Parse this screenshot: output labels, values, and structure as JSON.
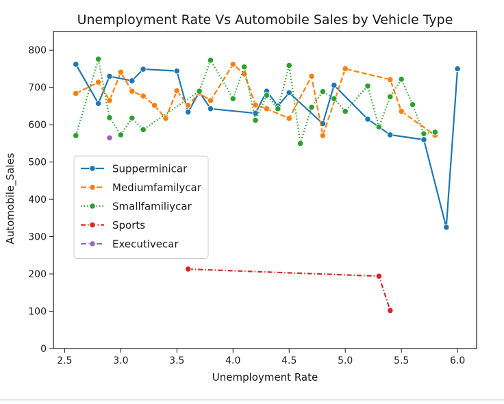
{
  "chart_data": {
    "type": "line",
    "title": "Unemployment Rate Vs Automobile Sales by Vehicle Type",
    "xlabel": "Unemployment Rate",
    "ylabel": "Automobile_Sales",
    "xlim": [
      2.4,
      6.17
    ],
    "ylim": [
      0,
      850
    ],
    "xticks": [
      2.5,
      3.0,
      3.5,
      4.0,
      4.5,
      5.0,
      5.5,
      6.0
    ],
    "xtick_labels": [
      "2.5",
      "3.0",
      "3.5",
      "4.0",
      "4.5",
      "5.0",
      "5.5",
      "6.0"
    ],
    "yticks": [
      0,
      100,
      200,
      300,
      400,
      500,
      600,
      700,
      800
    ],
    "ytick_labels": [
      "0",
      "100",
      "200",
      "300",
      "400",
      "500",
      "600",
      "700",
      "800"
    ],
    "grid": false,
    "legend_position": "center-left",
    "series": [
      {
        "name": "Supperminicar",
        "color": "#1f77b4",
        "line_style": "solid",
        "x": [
          2.6,
          2.8,
          2.9,
          3.1,
          3.2,
          3.5,
          3.6,
          3.7,
          3.8,
          4.2,
          4.3,
          4.4,
          4.5,
          4.8,
          4.9,
          5.2,
          5.4,
          5.7,
          5.9,
          6.0
        ],
        "y": [
          762,
          657,
          730,
          718,
          749,
          744,
          634,
          688,
          643,
          631,
          690,
          650,
          686,
          603,
          706,
          615,
          573,
          560,
          325,
          750
        ]
      },
      {
        "name": "Mediumfamilycar",
        "color": "#ff7f0e",
        "line_style": "dashed",
        "x": [
          2.6,
          2.8,
          2.9,
          3.0,
          3.1,
          3.2,
          3.3,
          3.4,
          3.5,
          3.6,
          3.7,
          3.8,
          4.0,
          4.1,
          4.2,
          4.3,
          4.5,
          4.7,
          4.8,
          5.0,
          5.4,
          5.5,
          5.8
        ],
        "y": [
          684,
          714,
          665,
          741,
          690,
          677,
          652,
          617,
          691,
          652,
          685,
          665,
          762,
          736,
          653,
          643,
          617,
          730,
          571,
          750,
          721,
          636,
          572
        ]
      },
      {
        "name": "Smallfamiliycar",
        "color": "#2ca02c",
        "line_style": "dotted",
        "x": [
          2.6,
          2.8,
          2.9,
          3.0,
          3.1,
          3.2,
          3.7,
          3.8,
          4.0,
          4.1,
          4.2,
          4.3,
          4.4,
          4.5,
          4.6,
          4.7,
          4.8,
          4.9,
          5.0,
          5.2,
          5.3,
          5.4,
          5.5,
          5.6,
          5.7,
          5.8
        ],
        "y": [
          571,
          776,
          619,
          573,
          618,
          587,
          690,
          773,
          670,
          755,
          612,
          679,
          643,
          759,
          550,
          647,
          689,
          670,
          636,
          704,
          594,
          675,
          722,
          654,
          576,
          580
        ]
      },
      {
        "name": "Sports",
        "color": "#d62728",
        "line_style": "dashdot",
        "x": [
          3.6,
          5.3,
          5.4
        ],
        "y": [
          213,
          194,
          102
        ]
      },
      {
        "name": "Executivecar",
        "color": "#9467bd",
        "line_style": "dashed",
        "x": [
          2.9
        ],
        "y": [
          565
        ]
      }
    ]
  }
}
